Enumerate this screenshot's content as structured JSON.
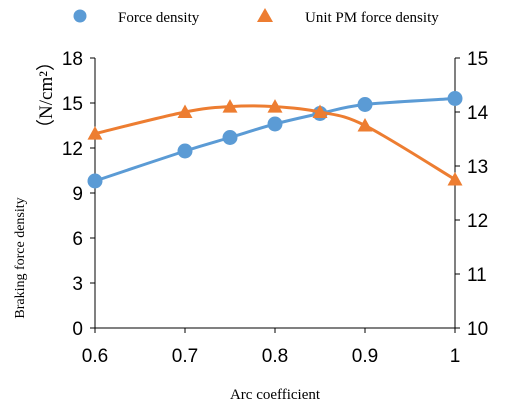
{
  "chart_data": {
    "type": "line",
    "x": [
      0.6,
      0.7,
      0.75,
      0.8,
      0.85,
      0.9,
      1.0
    ],
    "xlabel": "Arc coefficient",
    "xlim": [
      0.6,
      1.0
    ],
    "x_ticks": [
      "0.6",
      "0.7",
      "0.8",
      "0.9",
      "1"
    ],
    "ylabel": "Braking force density",
    "ylabel_unit": "（N/cm²）",
    "ylim": [
      0,
      18
    ],
    "y_ticks": [
      "0",
      "3",
      "6",
      "9",
      "12",
      "15",
      "18"
    ],
    "y2lim": [
      10,
      15
    ],
    "y2_ticks": [
      "10",
      "11",
      "12",
      "13",
      "14",
      "15"
    ],
    "grid": false,
    "legend_position": "top",
    "series": [
      {
        "name": "Force density",
        "axis": "left",
        "marker": "circle",
        "color": "#5B9BD5",
        "values": [
          9.8,
          11.8,
          12.7,
          13.6,
          14.3,
          14.9,
          15.3
        ]
      },
      {
        "name": "Unit PM force density",
        "axis": "right",
        "marker": "triangle",
        "color": "#ED7D31",
        "values": [
          13.6,
          14.0,
          14.1,
          14.1,
          14.0,
          13.75,
          12.75
        ]
      }
    ]
  }
}
